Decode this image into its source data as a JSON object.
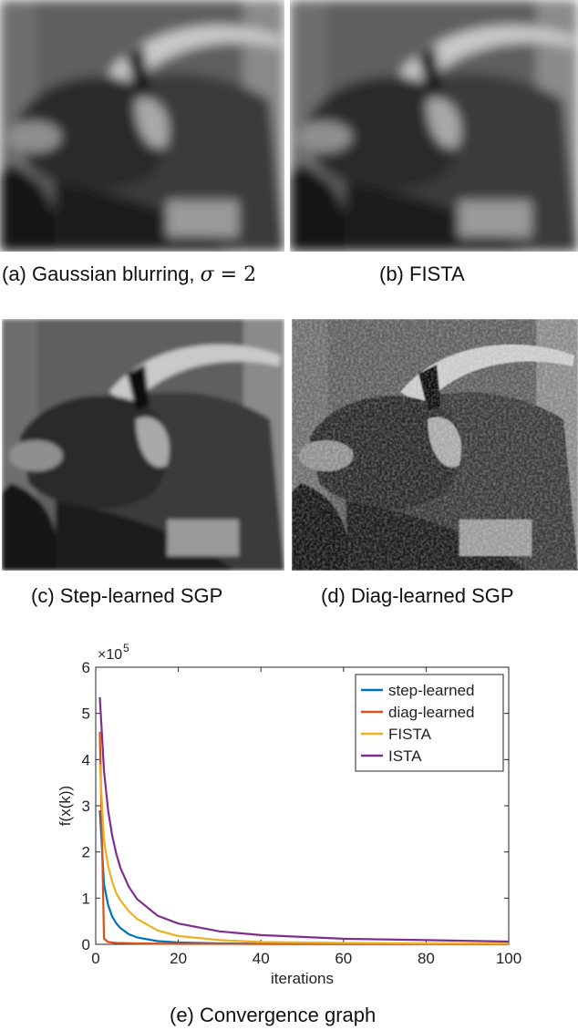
{
  "figure": {
    "panels": [
      {
        "id": "a",
        "prefix": "(a) Gaussian blurring, ",
        "math_var": "σ",
        "math_rest": " = 2"
      },
      {
        "id": "b",
        "caption": "(b) FISTA"
      },
      {
        "id": "c",
        "caption": "(c) Step-learned SGP"
      },
      {
        "id": "d",
        "caption": "(d) Diag-learned SGP"
      }
    ],
    "graph_caption": "(e) Convergence graph"
  },
  "chart_data": {
    "type": "line",
    "xlabel": "iterations",
    "ylabel": "f(x(k))",
    "y_multiplier": "×10",
    "y_multiplier_exp": "5",
    "xlim": [
      0,
      100
    ],
    "ylim": [
      0,
      6
    ],
    "xticks": [
      0,
      20,
      40,
      60,
      80,
      100
    ],
    "yticks": [
      0,
      1,
      2,
      3,
      4,
      5,
      6
    ],
    "grid": false,
    "legend_position": "top-right",
    "series": [
      {
        "name": "step-learned",
        "color": "#0072BD",
        "x": [
          1,
          2,
          3,
          4,
          5,
          6,
          8,
          10,
          15,
          20,
          30,
          40,
          60,
          80,
          100
        ],
        "y": [
          2.9,
          1.3,
          0.85,
          0.6,
          0.45,
          0.35,
          0.22,
          0.15,
          0.07,
          0.04,
          0.02,
          0.012,
          0.008,
          0.006,
          0.005
        ]
      },
      {
        "name": "diag-learned",
        "color": "#D95319",
        "x": [
          1,
          2,
          3,
          5,
          10,
          20,
          40,
          60,
          80,
          100
        ],
        "y": [
          4.6,
          0.12,
          0.05,
          0.03,
          0.02,
          0.01,
          0.008,
          0.006,
          0.005,
          0.004
        ]
      },
      {
        "name": "FISTA",
        "color": "#EDB120",
        "x": [
          1,
          2,
          3,
          4,
          5,
          6,
          8,
          10,
          15,
          20,
          30,
          40,
          60,
          80,
          100
        ],
        "y": [
          3.9,
          2.25,
          1.7,
          1.35,
          1.1,
          0.95,
          0.72,
          0.55,
          0.3,
          0.18,
          0.09,
          0.05,
          0.03,
          0.02,
          0.015
        ]
      },
      {
        "name": "ISTA",
        "color": "#7E2F8E",
        "x": [
          1,
          2,
          3,
          4,
          5,
          6,
          8,
          10,
          15,
          20,
          30,
          40,
          60,
          80,
          100
        ],
        "y": [
          5.35,
          3.75,
          2.9,
          2.35,
          1.95,
          1.65,
          1.25,
          0.98,
          0.62,
          0.45,
          0.28,
          0.2,
          0.12,
          0.09,
          0.06
        ]
      }
    ]
  }
}
